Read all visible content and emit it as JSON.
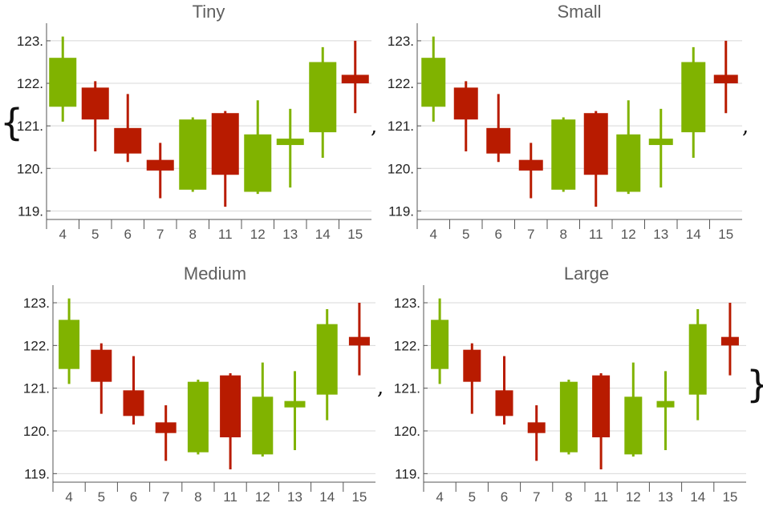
{
  "list": {
    "open_brace": "{",
    "close_brace": "}",
    "separator": ","
  },
  "colors": {
    "up": "#80b300",
    "down": "#b81b00",
    "grid": "#d8d8d8",
    "axis": "#555555"
  },
  "chart_data": [
    {
      "type": "candlestick",
      "title": "Tiny",
      "xlabel": "",
      "ylabel": "",
      "categories": [
        "4",
        "5",
        "6",
        "7",
        "8",
        "11",
        "12",
        "13",
        "14",
        "15"
      ],
      "open": [
        121.45,
        121.9,
        120.95,
        120.2,
        119.5,
        121.3,
        119.45,
        120.55,
        120.85,
        122.2
      ],
      "high": [
        123.1,
        122.05,
        121.75,
        120.6,
        121.2,
        121.35,
        121.6,
        121.4,
        122.85,
        123.0
      ],
      "low": [
        121.1,
        120.4,
        120.15,
        119.3,
        119.45,
        119.1,
        119.4,
        119.55,
        120.25,
        121.3
      ],
      "close": [
        122.6,
        121.15,
        120.35,
        119.95,
        121.15,
        119.85,
        120.8,
        120.7,
        122.5,
        122.0
      ],
      "yticks": [
        "119.",
        "120.",
        "121.",
        "122.",
        "123."
      ],
      "ylim": [
        118.8,
        123.3
      ],
      "grid": true
    },
    {
      "type": "candlestick",
      "title": "Small",
      "xlabel": "",
      "ylabel": "",
      "categories": [
        "4",
        "5",
        "6",
        "7",
        "8",
        "11",
        "12",
        "13",
        "14",
        "15"
      ],
      "open": [
        121.45,
        121.9,
        120.95,
        120.2,
        119.5,
        121.3,
        119.45,
        120.55,
        120.85,
        122.2
      ],
      "high": [
        123.1,
        122.05,
        121.75,
        120.6,
        121.2,
        121.35,
        121.6,
        121.4,
        122.85,
        123.0
      ],
      "low": [
        121.1,
        120.4,
        120.15,
        119.3,
        119.45,
        119.1,
        119.4,
        119.55,
        120.25,
        121.3
      ],
      "close": [
        122.6,
        121.15,
        120.35,
        119.95,
        121.15,
        119.85,
        120.8,
        120.7,
        122.5,
        122.0
      ],
      "yticks": [
        "119.",
        "120.",
        "121.",
        "122.",
        "123."
      ],
      "ylim": [
        118.8,
        123.3
      ],
      "grid": true
    },
    {
      "type": "candlestick",
      "title": "Medium",
      "xlabel": "",
      "ylabel": "",
      "categories": [
        "4",
        "5",
        "6",
        "7",
        "8",
        "11",
        "12",
        "13",
        "14",
        "15"
      ],
      "open": [
        121.45,
        121.9,
        120.95,
        120.2,
        119.5,
        121.3,
        119.45,
        120.55,
        120.85,
        122.2
      ],
      "high": [
        123.1,
        122.05,
        121.75,
        120.6,
        121.2,
        121.35,
        121.6,
        121.4,
        122.85,
        123.0
      ],
      "low": [
        121.1,
        120.4,
        120.15,
        119.3,
        119.45,
        119.1,
        119.4,
        119.55,
        120.25,
        121.3
      ],
      "close": [
        122.6,
        121.15,
        120.35,
        119.95,
        121.15,
        119.85,
        120.8,
        120.7,
        122.5,
        122.0
      ],
      "yticks": [
        "119.",
        "120.",
        "121.",
        "122.",
        "123."
      ],
      "ylim": [
        118.8,
        123.3
      ],
      "grid": true
    },
    {
      "type": "candlestick",
      "title": "Large",
      "xlabel": "",
      "ylabel": "",
      "categories": [
        "4",
        "5",
        "6",
        "7",
        "8",
        "11",
        "12",
        "13",
        "14",
        "15"
      ],
      "open": [
        121.45,
        121.9,
        120.95,
        120.2,
        119.5,
        121.3,
        119.45,
        120.55,
        120.85,
        122.2
      ],
      "high": [
        123.1,
        122.05,
        121.75,
        120.6,
        121.2,
        121.35,
        121.6,
        121.4,
        122.85,
        123.0
      ],
      "low": [
        121.1,
        120.4,
        120.15,
        119.3,
        119.45,
        119.1,
        119.4,
        119.55,
        120.25,
        121.3
      ],
      "close": [
        122.6,
        121.15,
        120.35,
        119.95,
        121.15,
        119.85,
        120.8,
        120.7,
        122.5,
        122.0
      ],
      "yticks": [
        "119.",
        "120.",
        "121.",
        "122.",
        "123."
      ],
      "ylim": [
        118.8,
        123.3
      ],
      "grid": true
    }
  ]
}
